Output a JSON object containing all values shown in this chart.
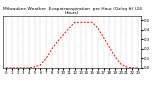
{
  "title": "Milwaukee Weather  Evapotranspiration  per Hour (Oz/sq ft) (24 Hours)",
  "hours": [
    0,
    1,
    2,
    3,
    4,
    5,
    6,
    7,
    8,
    9,
    10,
    11,
    12,
    13,
    14,
    15,
    16,
    17,
    18,
    19,
    20,
    21,
    22,
    23
  ],
  "values": [
    0.0,
    0.0,
    0.0,
    0.0,
    0.0,
    0.01,
    0.03,
    0.1,
    0.2,
    0.28,
    0.35,
    0.42,
    0.48,
    0.48,
    0.48,
    0.48,
    0.42,
    0.32,
    0.22,
    0.12,
    0.04,
    0.01,
    0.0,
    0.0
  ],
  "line_color": "#ff0000",
  "line_style": "--",
  "line_width": 0.7,
  "bg_color": "#ffffff",
  "grid_color": "#888888",
  "ylim": [
    0,
    0.55
  ],
  "xlim": [
    -0.5,
    23.5
  ],
  "title_fontsize": 3.2,
  "tick_fontsize": 2.8,
  "yticks": [
    0.0,
    0.1,
    0.2,
    0.3,
    0.4,
    0.5
  ],
  "xtick_step": 1,
  "figsize": [
    1.6,
    0.87
  ],
  "dpi": 100
}
